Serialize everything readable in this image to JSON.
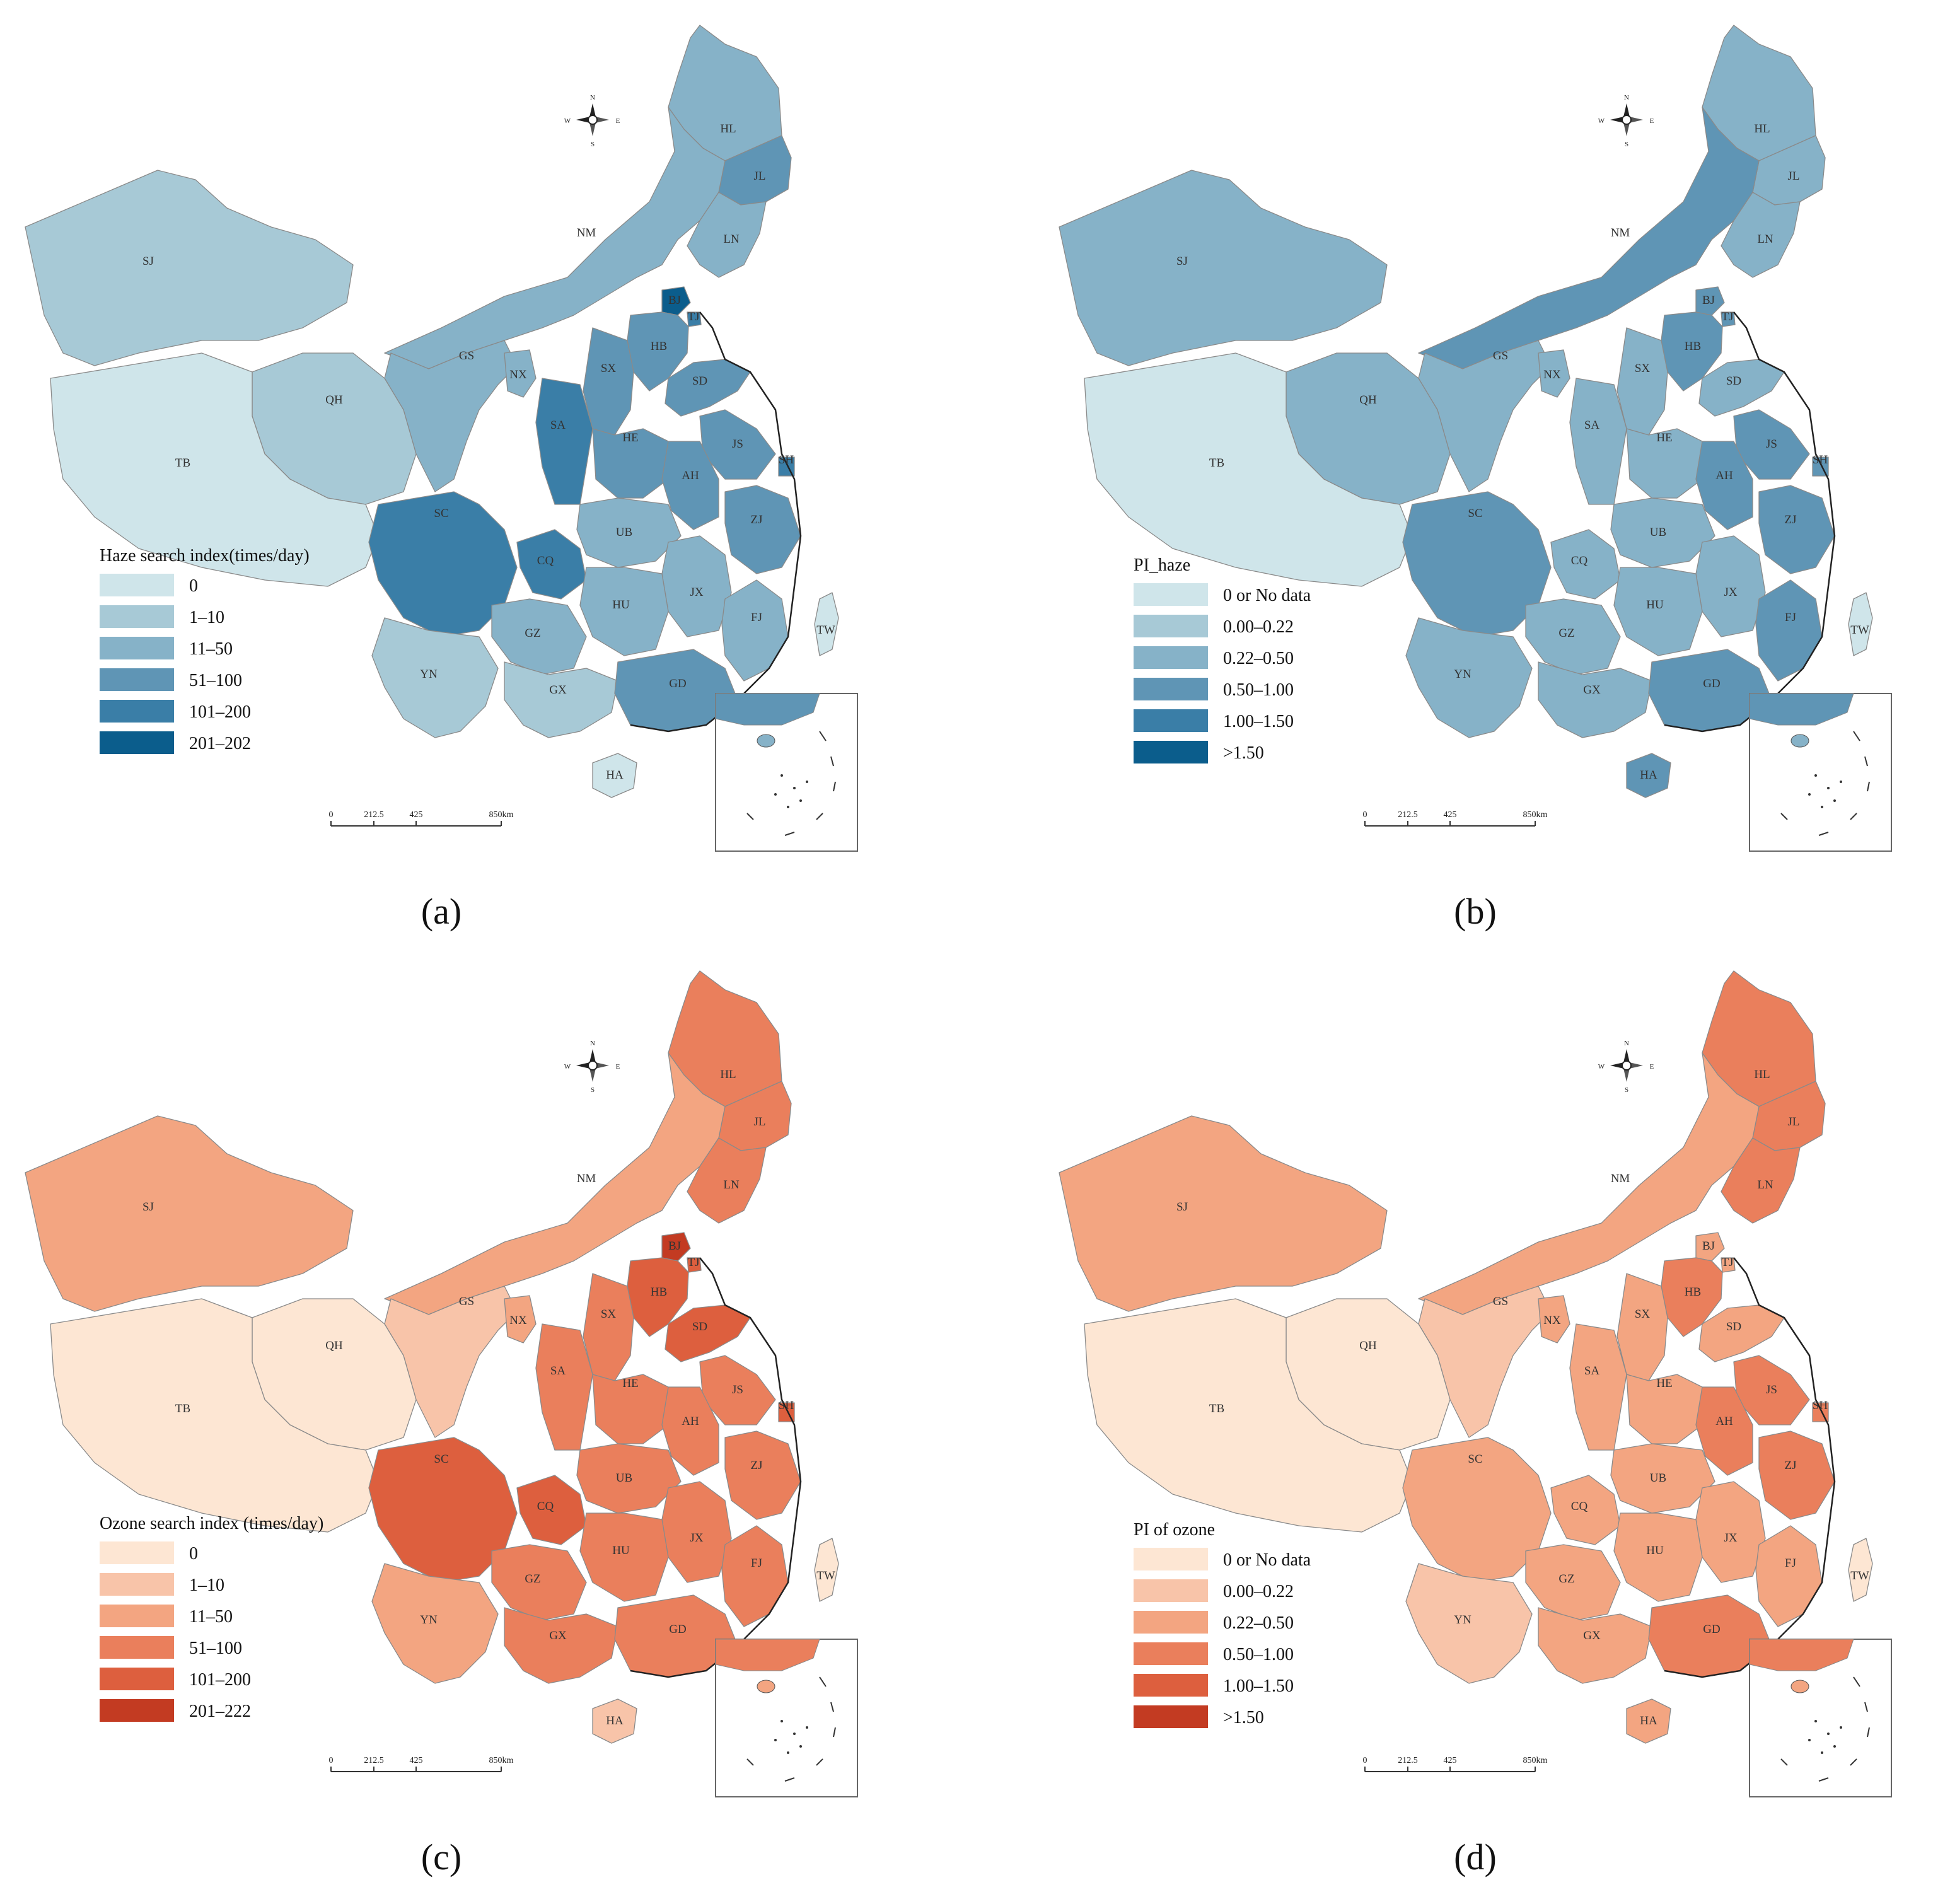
{
  "panels": [
    {
      "caption": "(a)",
      "legend_title": "Haze search index(times/day)",
      "legend_items": [
        {
          "label": "0",
          "color": "#cfe5ea"
        },
        {
          "label": "1–10",
          "color": "#a7c9d6"
        },
        {
          "label": "11–50",
          "color": "#86b2c8"
        },
        {
          "label": "51–100",
          "color": "#5f95b5"
        },
        {
          "label": "101–200",
          "color": "#3a7ea7"
        },
        {
          "label": "201–202",
          "color": "#0b5d8c"
        }
      ],
      "province_labels": [
        "HL",
        "JL",
        "NM",
        "LN",
        "SJ",
        "BJ",
        "TJ",
        "HB",
        "SX",
        "SD",
        "GS",
        "NX",
        "QH",
        "SA",
        "HE",
        "JS",
        "SH",
        "AH",
        "TB",
        "SC",
        "UB",
        "ZJ",
        "CQ",
        "JX",
        "HU",
        "GZ",
        "FJ",
        "YN",
        "GX",
        "GD",
        "TW",
        "HA"
      ],
      "scale_labels": [
        "0",
        "212.5",
        "425",
        "850km"
      ],
      "compass": {
        "n": "N",
        "s": "S",
        "e": "E",
        "w": "W"
      }
    },
    {
      "caption": "(b)",
      "legend_title": "PI_haze",
      "legend_items": [
        {
          "label": "0 or No data",
          "color": "#cfe5ea"
        },
        {
          "label": "0.00–0.22",
          "color": "#a7c9d6"
        },
        {
          "label": "0.22–0.50",
          "color": "#86b2c8"
        },
        {
          "label": "0.50–1.00",
          "color": "#5f95b5"
        },
        {
          "label": "1.00–1.50",
          "color": "#3a7ea7"
        },
        {
          "label": ">1.50",
          "color": "#0b5d8c"
        }
      ],
      "province_labels": [
        "HL",
        "JL",
        "NM",
        "LN",
        "SJ",
        "BJ",
        "TJ",
        "HB",
        "SX",
        "SD",
        "GS",
        "NX",
        "QH",
        "SA",
        "HE",
        "JS",
        "SH",
        "AH",
        "TB",
        "SC",
        "UB",
        "ZJ",
        "CQ",
        "JX",
        "HU",
        "GZ",
        "FJ",
        "YN",
        "GX",
        "GD",
        "TW",
        "HA"
      ],
      "scale_labels": [
        "0",
        "212.5",
        "425",
        "850km"
      ],
      "compass": {
        "n": "N",
        "s": "S",
        "e": "E",
        "w": "W"
      }
    },
    {
      "caption": "(c)",
      "legend_title": "Ozone search index (times/day)",
      "legend_items": [
        {
          "label": "0",
          "color": "#fde6d3"
        },
        {
          "label": "1–10",
          "color": "#f8c4a9"
        },
        {
          "label": "11–50",
          "color": "#f3a581"
        },
        {
          "label": "51–100",
          "color": "#ea7f5c"
        },
        {
          "label": "101–200",
          "color": "#dd5f3e"
        },
        {
          "label": "201–222",
          "color": "#c33b22"
        }
      ],
      "province_labels": [
        "HL",
        "JL",
        "NM",
        "LN",
        "SJ",
        "BJ",
        "TJ",
        "HB",
        "SX",
        "SD",
        "GS",
        "NX",
        "QH",
        "SA",
        "HE",
        "JS",
        "SH",
        "AH",
        "TB",
        "SC",
        "UB",
        "ZJ",
        "CQ",
        "JX",
        "HU",
        "GZ",
        "FJ",
        "YN",
        "GX",
        "GD",
        "TW",
        "HA"
      ],
      "scale_labels": [
        "0",
        "212.5",
        "425",
        "850km"
      ],
      "compass": {
        "n": "N",
        "s": "S",
        "e": "E",
        "w": "W"
      }
    },
    {
      "caption": "(d)",
      "legend_title": "PI of ozone",
      "legend_items": [
        {
          "label": "0 or No data",
          "color": "#fde6d3"
        },
        {
          "label": "0.00–0.22",
          "color": "#f8c4a9"
        },
        {
          "label": "0.22–0.50",
          "color": "#f3a581"
        },
        {
          "label": "0.50–1.00",
          "color": "#ea7f5c"
        },
        {
          "label": "1.00–1.50",
          "color": "#dd5f3e"
        },
        {
          "label": ">1.50",
          "color": "#c33b22"
        }
      ],
      "province_labels": [
        "HL",
        "JL",
        "NM",
        "LN",
        "SJ",
        "BJ",
        "TJ",
        "HB",
        "SX",
        "SD",
        "GS",
        "NX",
        "QH",
        "SA",
        "HE",
        "JS",
        "SH",
        "AH",
        "TB",
        "SC",
        "UB",
        "ZJ",
        "CQ",
        "JX",
        "HU",
        "GZ",
        "FJ",
        "YN",
        "GX",
        "GD",
        "TW",
        "HA"
      ],
      "scale_labels": [
        "0",
        "212.5",
        "425",
        "850km"
      ],
      "compass": {
        "n": "N",
        "s": "S",
        "e": "E",
        "w": "W"
      }
    }
  ]
}
